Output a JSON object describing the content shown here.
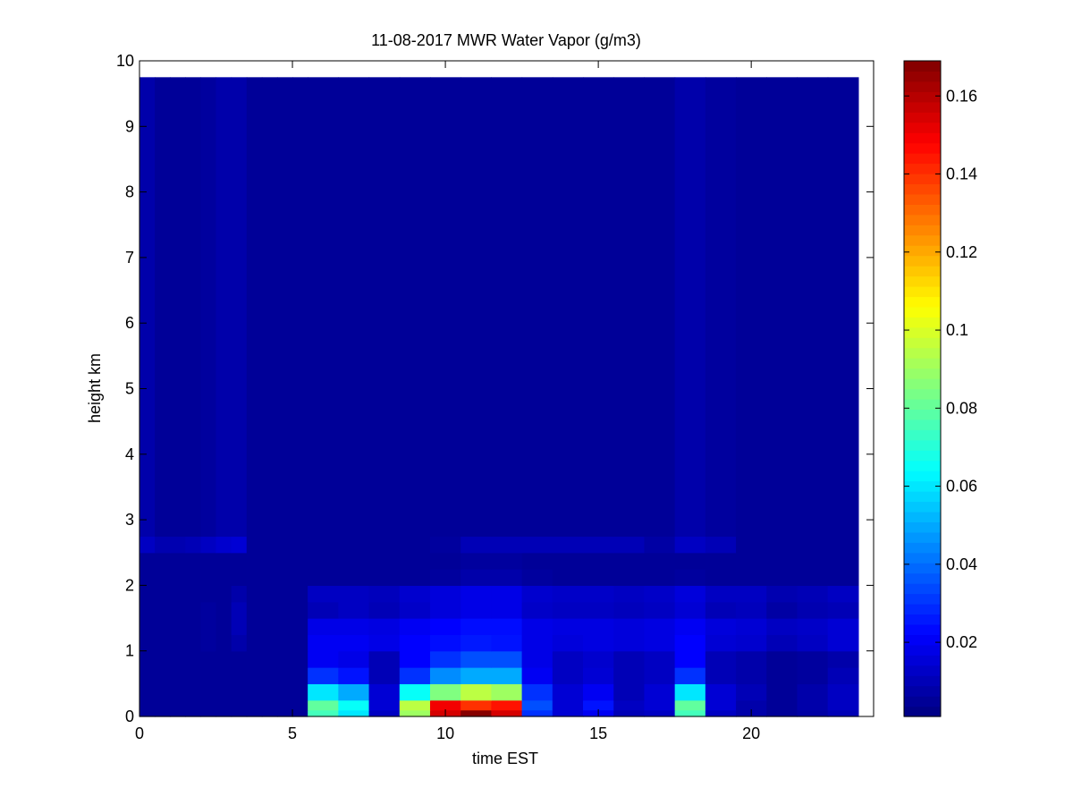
{
  "chart_data": {
    "type": "heatmap",
    "title": "11-08-2017 MWR Water Vapor (g/m3)",
    "xlabel": "time EST",
    "ylabel": "height km",
    "xlim": [
      0,
      24
    ],
    "ylim": [
      0,
      10
    ],
    "xticks": [
      0,
      5,
      10,
      15,
      20
    ],
    "yticks": [
      0,
      1,
      2,
      3,
      4,
      5,
      6,
      7,
      8,
      9,
      10
    ],
    "colormap": "jet",
    "clim": [
      0.001,
      0.169
    ],
    "colorbar_ticks": [
      0.02,
      0.04,
      0.06,
      0.08,
      0.1,
      0.12,
      0.14,
      0.16
    ],
    "colorbar_tick_labels": [
      "0.02",
      "0.04",
      "0.06",
      "0.08",
      "0.1",
      "0.12",
      "0.14",
      "0.16"
    ],
    "x_edges": [
      0,
      0.5,
      1,
      1.5,
      2,
      2.5,
      3,
      3.5,
      4,
      4.5,
      5,
      5.5,
      6.5,
      7.5,
      8.5,
      9.5,
      10.5,
      11.5,
      12.5,
      13.5,
      14.5,
      15.5,
      16.5,
      17.5,
      18.5,
      19.5,
      20.5,
      21.5,
      22.5,
      23.5
    ],
    "y_edges": [
      0,
      0.1,
      0.25,
      0.5,
      0.75,
      1.0,
      1.25,
      1.5,
      1.75,
      2.0,
      2.25,
      2.5,
      2.75,
      9.75
    ],
    "values": [
      [
        0.005,
        0.005,
        0.005,
        0.005,
        0.005,
        0.005,
        0.005,
        0.005,
        0.005,
        0.005,
        0.005,
        0.075,
        0.06,
        0.012,
        0.09,
        0.155,
        0.168,
        0.155,
        0.03,
        0.015,
        0.02,
        0.01,
        0.012,
        0.075,
        0.012,
        0.008,
        0.005,
        0.007,
        0.01
      ],
      [
        0.005,
        0.005,
        0.005,
        0.005,
        0.005,
        0.005,
        0.005,
        0.005,
        0.005,
        0.005,
        0.005,
        0.08,
        0.065,
        0.015,
        0.095,
        0.15,
        0.14,
        0.145,
        0.035,
        0.015,
        0.025,
        0.012,
        0.015,
        0.08,
        0.015,
        0.008,
        0.005,
        0.008,
        0.012
      ],
      [
        0.005,
        0.005,
        0.005,
        0.005,
        0.005,
        0.005,
        0.005,
        0.005,
        0.005,
        0.005,
        0.005,
        0.06,
        0.05,
        0.015,
        0.065,
        0.085,
        0.095,
        0.09,
        0.03,
        0.015,
        0.02,
        0.01,
        0.015,
        0.06,
        0.015,
        0.01,
        0.005,
        0.008,
        0.012
      ],
      [
        0.005,
        0.005,
        0.005,
        0.005,
        0.005,
        0.005,
        0.005,
        0.005,
        0.005,
        0.005,
        0.005,
        0.03,
        0.025,
        0.01,
        0.03,
        0.045,
        0.05,
        0.05,
        0.02,
        0.012,
        0.015,
        0.01,
        0.012,
        0.03,
        0.01,
        0.008,
        0.005,
        0.006,
        0.01
      ],
      [
        0.005,
        0.005,
        0.005,
        0.005,
        0.005,
        0.005,
        0.005,
        0.005,
        0.005,
        0.005,
        0.005,
        0.02,
        0.018,
        0.01,
        0.022,
        0.03,
        0.035,
        0.035,
        0.018,
        0.012,
        0.014,
        0.01,
        0.012,
        0.022,
        0.01,
        0.008,
        0.005,
        0.006,
        0.008
      ],
      [
        0.005,
        0.005,
        0.005,
        0.005,
        0.006,
        0.005,
        0.008,
        0.005,
        0.005,
        0.005,
        0.005,
        0.02,
        0.02,
        0.018,
        0.022,
        0.024,
        0.026,
        0.025,
        0.018,
        0.016,
        0.017,
        0.016,
        0.017,
        0.022,
        0.015,
        0.014,
        0.01,
        0.012,
        0.015
      ],
      [
        0.005,
        0.005,
        0.005,
        0.005,
        0.006,
        0.005,
        0.01,
        0.005,
        0.005,
        0.005,
        0.005,
        0.018,
        0.018,
        0.017,
        0.02,
        0.022,
        0.024,
        0.024,
        0.018,
        0.017,
        0.017,
        0.016,
        0.017,
        0.02,
        0.016,
        0.015,
        0.012,
        0.013,
        0.015
      ],
      [
        0.005,
        0.005,
        0.005,
        0.005,
        0.006,
        0.005,
        0.01,
        0.005,
        0.005,
        0.005,
        0.005,
        0.01,
        0.012,
        0.01,
        0.013,
        0.016,
        0.018,
        0.018,
        0.013,
        0.012,
        0.012,
        0.011,
        0.012,
        0.015,
        0.01,
        0.011,
        0.007,
        0.009,
        0.01
      ],
      [
        0.005,
        0.005,
        0.005,
        0.005,
        0.005,
        0.005,
        0.008,
        0.005,
        0.005,
        0.005,
        0.005,
        0.012,
        0.012,
        0.011,
        0.014,
        0.016,
        0.018,
        0.018,
        0.014,
        0.013,
        0.013,
        0.012,
        0.013,
        0.016,
        0.012,
        0.012,
        0.009,
        0.01,
        0.012
      ],
      [
        0.005,
        0.005,
        0.005,
        0.005,
        0.005,
        0.005,
        0.005,
        0.005,
        0.005,
        0.005,
        0.005,
        0.005,
        0.005,
        0.005,
        0.005,
        0.006,
        0.008,
        0.008,
        0.006,
        0.005,
        0.005,
        0.005,
        0.005,
        0.006,
        0.005,
        0.005,
        0.005,
        0.005,
        0.005
      ],
      [
        0.005,
        0.005,
        0.005,
        0.005,
        0.005,
        0.005,
        0.005,
        0.005,
        0.005,
        0.005,
        0.005,
        0.005,
        0.005,
        0.005,
        0.005,
        0.005,
        0.006,
        0.006,
        0.005,
        0.005,
        0.005,
        0.005,
        0.005,
        0.005,
        0.005,
        0.005,
        0.005,
        0.005,
        0.005
      ],
      [
        0.012,
        0.009,
        0.009,
        0.01,
        0.012,
        0.014,
        0.015,
        0.005,
        0.005,
        0.005,
        0.005,
        0.005,
        0.005,
        0.005,
        0.005,
        0.006,
        0.01,
        0.01,
        0.01,
        0.01,
        0.01,
        0.01,
        0.007,
        0.012,
        0.01,
        0.005,
        0.005,
        0.005,
        0.005
      ],
      [
        0.008,
        0.005,
        0.005,
        0.005,
        0.006,
        0.008,
        0.008,
        0.005,
        0.005,
        0.005,
        0.005,
        0.005,
        0.005,
        0.005,
        0.005,
        0.005,
        0.005,
        0.005,
        0.005,
        0.005,
        0.005,
        0.005,
        0.005,
        0.008,
        0.006,
        0.005,
        0.005,
        0.005,
        0.005
      ]
    ],
    "fill_value": 0.005,
    "grid": false
  }
}
